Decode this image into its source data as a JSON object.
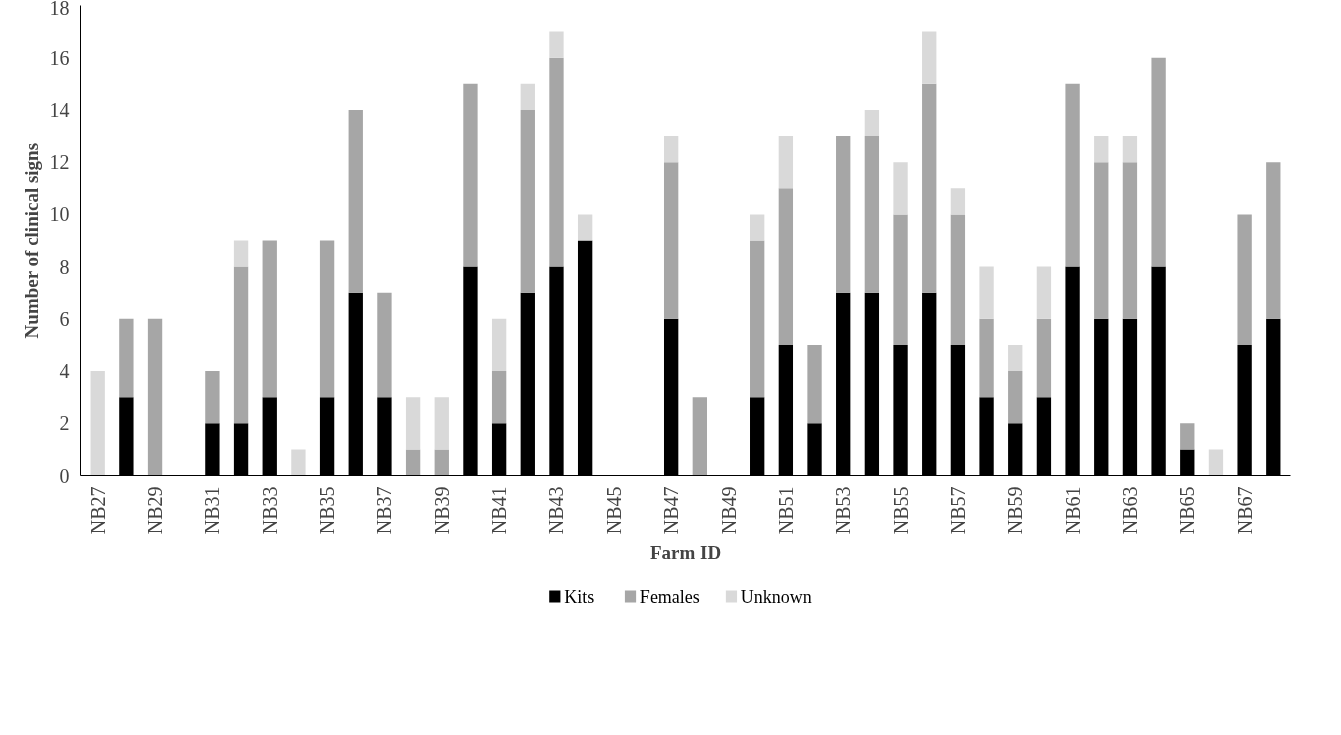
{
  "chart_data": {
    "type": "bar",
    "stacked": true,
    "xlabel": "Farm ID",
    "ylabel": "Number of clinical signs",
    "categories": [
      "NB27",
      null,
      "NB29",
      null,
      "NB31",
      null,
      "NB33",
      null,
      "NB35",
      null,
      "NB37",
      null,
      "NB39",
      null,
      "NB41",
      null,
      "NB43",
      null,
      "NB45",
      null,
      "NB47",
      null,
      "NB49",
      null,
      "NB51",
      null,
      "NB53",
      null,
      "NB55",
      null,
      "NB57",
      null,
      "NB59",
      null,
      "NB61",
      null,
      "NB63",
      null,
      "NB65",
      null,
      "NB67",
      null
    ],
    "series": [
      {
        "name": "Kits",
        "color": "#000000",
        "values": [
          0,
          3,
          0,
          0,
          2,
          2,
          3,
          0,
          3,
          7,
          3,
          0,
          0,
          8,
          2,
          7,
          8,
          9,
          0,
          0,
          6,
          0,
          0,
          3,
          5,
          2,
          7,
          7,
          5,
          7,
          5,
          3,
          2,
          3,
          8,
          6,
          6,
          8,
          1,
          0,
          5,
          6
        ]
      },
      {
        "name": "Females",
        "color": "#a6a6a6",
        "values": [
          0,
          3,
          6,
          0,
          2,
          6,
          6,
          0,
          6,
          7,
          4,
          1,
          1,
          7,
          2,
          7,
          8,
          0,
          0,
          0,
          6,
          3,
          0,
          6,
          6,
          3,
          6,
          6,
          5,
          8,
          5,
          3,
          2,
          3,
          7,
          6,
          6,
          8,
          1,
          0,
          5,
          6
        ]
      },
      {
        "name": "Unknown",
        "color": "#d9d9d9",
        "values": [
          4,
          0,
          0,
          0,
          0,
          1,
          0,
          1,
          0,
          0,
          0,
          2,
          2,
          0,
          2,
          1,
          1,
          1,
          0,
          0,
          1,
          0,
          0,
          1,
          2,
          0,
          0,
          1,
          2,
          2,
          1,
          2,
          1,
          2,
          0,
          1,
          1,
          0,
          0,
          1,
          0,
          0
        ]
      }
    ],
    "ylim": [
      0,
      18
    ],
    "yticks": [
      0,
      2,
      4,
      6,
      8,
      10,
      12,
      14,
      16,
      18
    ],
    "grid": false,
    "legend": "bottom"
  }
}
